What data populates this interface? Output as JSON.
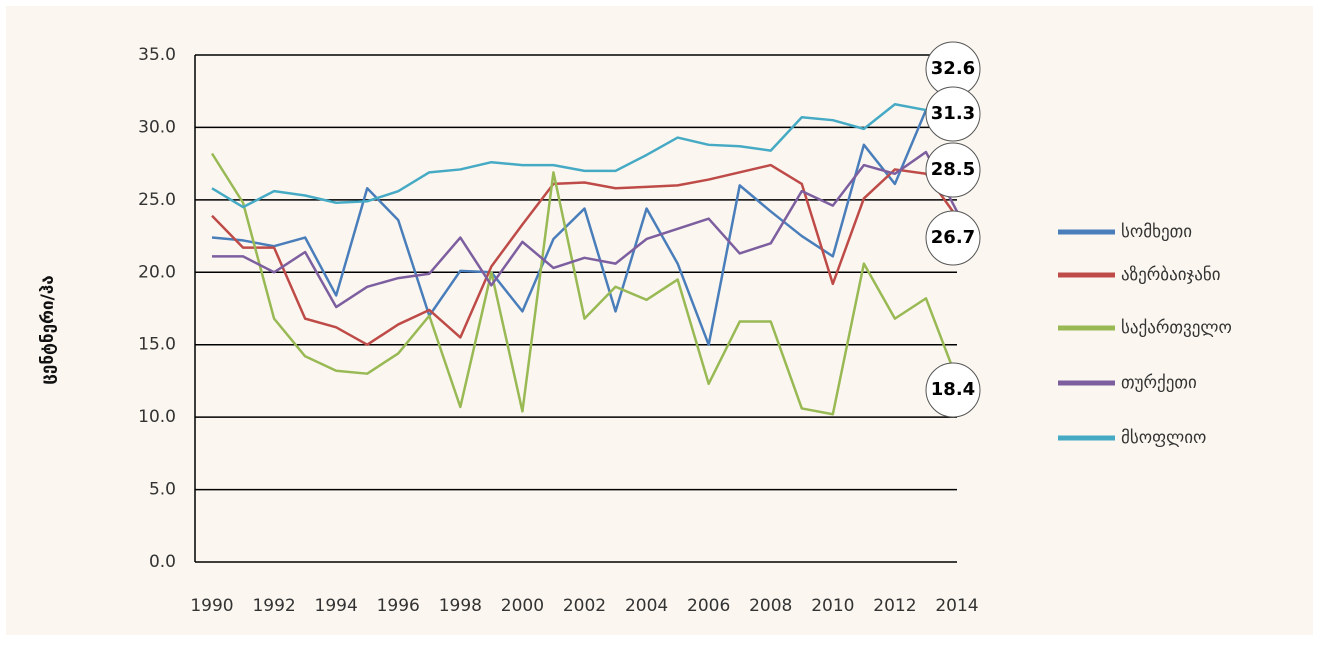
{
  "chart_data": {
    "type": "line",
    "y_label": "ცენტნერი/ჰა",
    "x": [
      1990,
      1991,
      1992,
      1993,
      1994,
      1995,
      1996,
      1997,
      1998,
      1999,
      2000,
      2001,
      2002,
      2003,
      2004,
      2005,
      2006,
      2007,
      2008,
      2009,
      2010,
      2011,
      2012,
      2013,
      2014
    ],
    "xlim": [
      1990,
      2014
    ],
    "xticks": [
      1990,
      1992,
      1994,
      1996,
      1998,
      2000,
      2002,
      2004,
      2006,
      2008,
      2010,
      2012,
      2014
    ],
    "ylim": [
      0,
      35
    ],
    "yticks": [
      {
        "value": 0,
        "label": "0.0"
      },
      {
        "value": 5,
        "label": "5.0"
      },
      {
        "value": 10,
        "label": "10.0"
      },
      {
        "value": 15,
        "label": "15.0"
      },
      {
        "value": 20,
        "label": "20.0"
      },
      {
        "value": 25,
        "label": "25.0"
      },
      {
        "value": 30,
        "label": "30.0"
      },
      {
        "value": 35,
        "label": "35.0"
      }
    ],
    "grid": true,
    "legend": "right",
    "series": [
      {
        "name": "სომხეთი",
        "color": "#4a7ebb",
        "values": [
          22.4,
          22.2,
          21.8,
          22.4,
          18.4,
          25.8,
          23.6,
          17.0,
          20.1,
          20.0,
          17.3,
          22.3,
          24.4,
          17.3,
          24.4,
          20.6,
          15.0,
          26.0,
          24.2,
          22.5,
          21.1,
          28.8,
          26.1,
          31.2,
          32.4
        ]
      },
      {
        "name": "აზერბაიჯანი",
        "color": "#be4b48",
        "values": [
          23.9,
          21.7,
          21.7,
          16.8,
          16.2,
          15.0,
          16.4,
          17.4,
          15.5,
          20.4,
          23.3,
          26.1,
          26.2,
          25.8,
          25.9,
          26.0,
          26.4,
          26.9,
          27.4,
          26.1,
          19.2,
          25.1,
          27.1,
          26.8,
          23.8
        ]
      },
      {
        "name": "საქართველო",
        "color": "#98b954",
        "values": [
          28.2,
          24.8,
          16.8,
          14.2,
          13.2,
          13.0,
          14.4,
          17.0,
          10.7,
          20.0,
          10.4,
          26.9,
          16.8,
          19.0,
          18.1,
          19.5,
          12.3,
          16.6,
          16.6,
          10.6,
          10.2,
          20.6,
          16.8,
          18.2,
          12.6
        ]
      },
      {
        "name": "თურქეთი",
        "color": "#7d5fa0",
        "values": [
          21.1,
          21.1,
          20.0,
          21.4,
          17.6,
          19.0,
          19.6,
          19.9,
          22.4,
          19.1,
          22.1,
          20.3,
          21.0,
          20.6,
          22.3,
          23.0,
          23.7,
          21.3,
          22.0,
          25.6,
          24.6,
          27.4,
          26.8,
          28.3,
          24.2
        ]
      },
      {
        "name": "მსოფლიო",
        "color": "#46aac5",
        "values": [
          25.8,
          24.5,
          25.6,
          25.3,
          24.8,
          24.9,
          25.6,
          26.9,
          27.1,
          27.6,
          27.4,
          27.4,
          27.0,
          27.0,
          28.1,
          29.3,
          28.8,
          28.7,
          28.4,
          30.7,
          30.5,
          29.9,
          31.6,
          31.2,
          33.2
        ]
      }
    ],
    "annotations": [
      "32.6",
      "31.3",
      "28.5",
      "26.7",
      "18.4"
    ]
  }
}
